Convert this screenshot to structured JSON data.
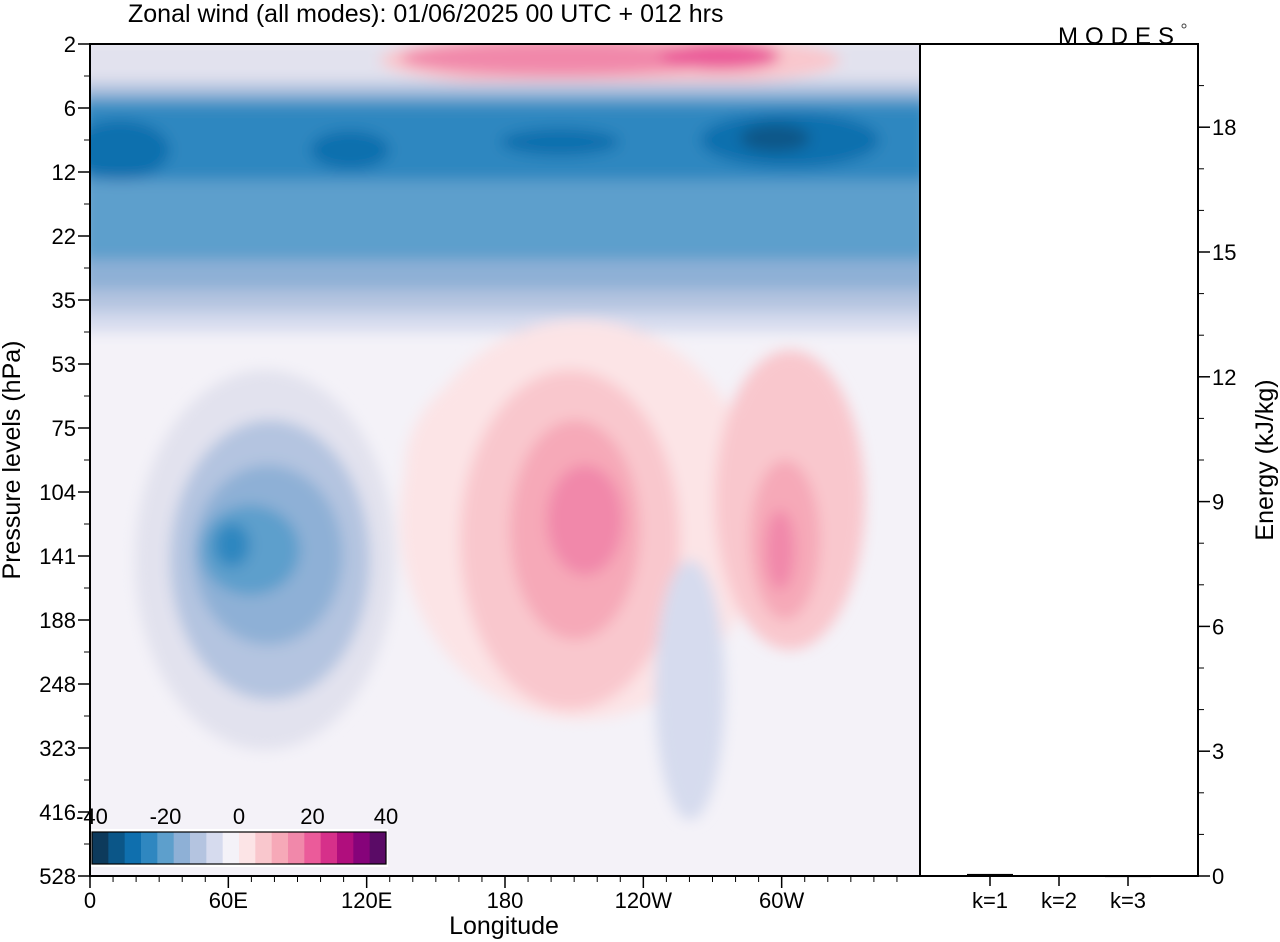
{
  "header": {
    "title": "Zonal wind (all modes):  01/06/2025  00 UTC  + 012 hrs",
    "logo": "MODES"
  },
  "chart_data": [
    {
      "type": "heatmap",
      "title": "Zonal wind (all modes):  01/06/2025  00 UTC  + 012 hrs",
      "xlabel": "Longitude",
      "ylabel": "Pressure levels (hPa)",
      "x_tick_labels": [
        "0",
        "60E",
        "120E",
        "180",
        "120W",
        "60W"
      ],
      "x_ticks_deg": [
        0,
        60,
        120,
        180,
        240,
        300
      ],
      "xlim_deg": [
        0,
        360
      ],
      "y_tick_labels": [
        "2",
        "6",
        "12",
        "22",
        "35",
        "53",
        "75",
        "104",
        "141",
        "188",
        "248",
        "323",
        "416",
        "528"
      ],
      "y_axis_direction": "pressure increasing downward",
      "colorbar": {
        "tick_labels": [
          "-40",
          "-20",
          "0",
          "20",
          "40"
        ],
        "range": [
          -40,
          40
        ],
        "colors": [
          "#0d3a5c",
          "#0b5688",
          "#0f6fae",
          "#2f87c0",
          "#5d9fcc",
          "#8eb0d6",
          "#b4c4e0",
          "#d6dbee",
          "#f4f2f8",
          "#fce4e6",
          "#f9c7cd",
          "#f6a9b8",
          "#f188aa",
          "#eb5b9a",
          "#d6308a",
          "#b00e7d",
          "#86037a",
          "#5a0b66"
        ]
      }
    },
    {
      "type": "bar",
      "ylabel": "Energy (kJ/kg)",
      "categories": [
        "k=1",
        "k=2",
        "k=3"
      ],
      "values": [
        0.05,
        0.02,
        0.01
      ],
      "ylim": [
        0,
        20
      ],
      "y_tick_labels": [
        "0",
        "3",
        "6",
        "9",
        "12",
        "15",
        "18"
      ],
      "y_ticks": [
        0,
        3,
        6,
        9,
        12,
        15,
        18
      ]
    }
  ]
}
